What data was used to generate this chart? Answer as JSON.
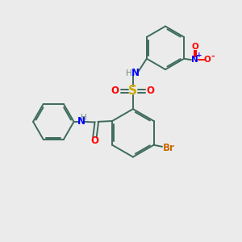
{
  "background_color": "#ebebeb",
  "bond_color": "#3d6b5e",
  "N_color": "#0000ff",
  "O_color": "#ff0000",
  "S_color": "#ccaa00",
  "Br_color": "#cc6600",
  "H_color": "#6b8b84",
  "figsize": [
    3.0,
    3.0
  ],
  "dpi": 100,
  "xlim": [
    0,
    10
  ],
  "ylim": [
    0,
    10
  ]
}
